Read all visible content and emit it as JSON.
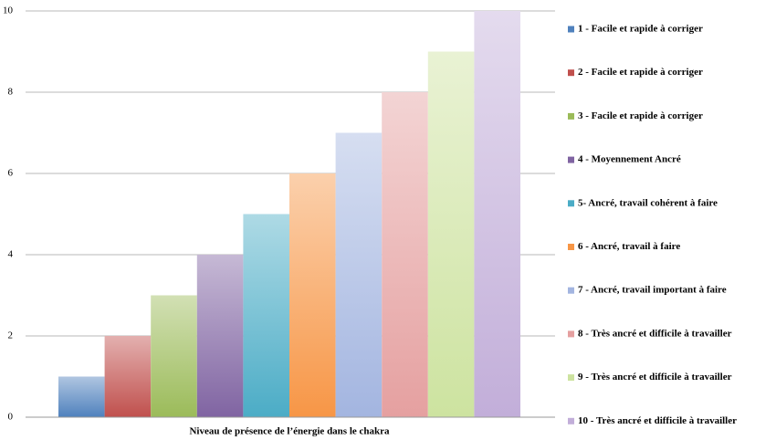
{
  "chart_data": {
    "type": "bar",
    "categories": [
      "Niveau de présence de l’énergie dans le chakra"
    ],
    "series": [
      {
        "name": "1 - Facile et rapide à corriger",
        "color": "#4f81bd",
        "values": [
          1
        ]
      },
      {
        "name": "2 - Facile et rapide à corriger",
        "color": "#c0504d",
        "values": [
          2
        ]
      },
      {
        "name": "3 - Facile et rapide à corriger",
        "color": "#9bbb59",
        "values": [
          3
        ]
      },
      {
        "name": "4 - Moyennement Ancré",
        "color": "#8064a2",
        "values": [
          4
        ]
      },
      {
        "name": "5- Ancré, travail cohérent à faire",
        "color": "#4bacc6",
        "values": [
          5
        ]
      },
      {
        "name": "6 - Ancré, travail à faire",
        "color": "#f79646",
        "values": [
          6
        ]
      },
      {
        "name": "7 - Ancré, travail important à faire",
        "color": "#a3b5e0",
        "values": [
          7
        ]
      },
      {
        "name": "8 - Très ancré et difficile à travailler",
        "color": "#e5a0a0",
        "values": [
          8
        ]
      },
      {
        "name": "9 - Très ancré et difficile à travailler",
        "color": "#cde3a0",
        "values": [
          9
        ]
      },
      {
        "name": "10 - Très ancré et difficile à travailler",
        "color": "#c2aed9",
        "values": [
          10
        ]
      }
    ],
    "ylim": [
      0,
      10
    ],
    "yticks": [
      0,
      2,
      4,
      6,
      8,
      10
    ],
    "grid": true,
    "legend": "right"
  }
}
